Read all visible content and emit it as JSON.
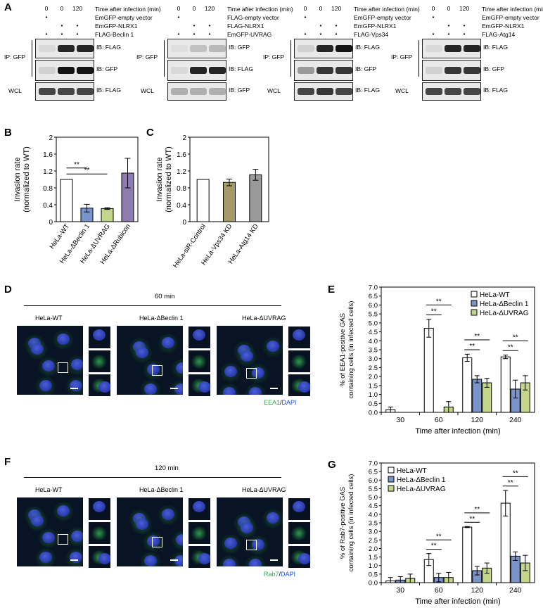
{
  "panelA": {
    "label": "A",
    "blots": [
      {
        "time_label": "Time after infection (min)",
        "times": [
          "0",
          "0",
          "120"
        ],
        "rows": [
          {
            "label": "EmGFP-empty vector",
            "marks": [
              "•",
              "",
              ""
            ]
          },
          {
            "label": "EmGFP-NLRX1",
            "marks": [
              "",
              "•",
              "•"
            ]
          },
          {
            "label": "FLAG-Beclin 1",
            "marks": [
              "•",
              "•",
              "•"
            ]
          }
        ],
        "ip": "IP: GFP",
        "wcl": "WCL",
        "ib": [
          "IB: FLAG",
          "IB: GFP",
          "IB: FLAG"
        ]
      },
      {
        "time_label": "Time after infection (min)",
        "times": [
          "0",
          "0",
          "120"
        ],
        "rows": [
          {
            "label": "FLAG-empty vector",
            "marks": [
              "•",
              "",
              ""
            ]
          },
          {
            "label": "FLAG-NLRX1",
            "marks": [
              "",
              "•",
              "•"
            ]
          },
          {
            "label": "EmGFP-UVRAG",
            "marks": [
              "•",
              "•",
              "•"
            ]
          }
        ],
        "ip": "IP: GFP",
        "wcl": "WCL",
        "ib": [
          "IB: GFP",
          "IB: FLAG",
          "IB: GFP"
        ]
      },
      {
        "time_label": "Time after infection (min)",
        "times": [
          "0",
          "0",
          "120"
        ],
        "rows": [
          {
            "label": "EmGFP-empty vector",
            "marks": [
              "•",
              "",
              ""
            ]
          },
          {
            "label": "EmGFP-NLRX1",
            "marks": [
              "",
              "•",
              "•"
            ]
          },
          {
            "label": "FLAG-Vps34",
            "marks": [
              "•",
              "•",
              "•"
            ]
          }
        ],
        "ip": "IP: GFP",
        "wcl": "WCL",
        "ib": [
          "IB: FLAG",
          "IB: GFP",
          "IB: FLAG"
        ]
      },
      {
        "time_label": "Time after infection (min)",
        "times": [
          "0",
          "0",
          "120"
        ],
        "rows": [
          {
            "label": "EmGFP-empty vector",
            "marks": [
              "•",
              "",
              ""
            ]
          },
          {
            "label": "EmGFP-NLRX1",
            "marks": [
              "",
              "•",
              "•"
            ]
          },
          {
            "label": "FLAG-Atg14",
            "marks": [
              "•",
              "•",
              "•"
            ]
          }
        ],
        "ip": "IP: GFP",
        "wcl": "WCL",
        "ib": [
          "IB: FLAG",
          "IB: GFP",
          "IB: FLAG"
        ]
      }
    ]
  },
  "panelD": {
    "label": "D",
    "time": "60 min",
    "samples": [
      "HeLa-WT",
      "HeLa-ΔBeclin 1",
      "HeLa-ΔUVRAG"
    ],
    "channel_a": "EEA1",
    "channel_sep": "/",
    "channel_b": "DAPI"
  },
  "panelF": {
    "label": "F",
    "time": "120 min",
    "samples": [
      "HeLa-WT",
      "HeLa-ΔBeclin 1",
      "HeLa-ΔUVRAG"
    ],
    "channel_a": "Rab7",
    "channel_sep": "/",
    "channel_b": "DAPI"
  },
  "colors": {
    "wt": "#ffffff",
    "beclin": "#7a93c8",
    "uvrag": "#c3d68c",
    "rubicon": "#8f7bb0",
    "vps34": "#a59b6a",
    "atg14": "#9a9a9a",
    "gfp_green": "#2ea84a",
    "dapi_blue": "#1f4fc8"
  },
  "chart_data": [
    {
      "panel": "B",
      "type": "bar",
      "categories": [
        "HeLa-WT",
        "HeLa-ΔBeclin 1",
        "HeLa-ΔUVRAG",
        "HeLa-ΔRubicon"
      ],
      "values": [
        1.0,
        0.32,
        0.31,
        1.15
      ],
      "errors": [
        0,
        0.09,
        0.02,
        0.35
      ],
      "ylabel_lines": [
        "Invasion rate",
        "(normalized to WT)"
      ],
      "ylim": [
        0,
        2
      ],
      "yticks": [
        0,
        0.4,
        0.8,
        1.2,
        1.6,
        2
      ],
      "significance": [
        {
          "from": 0,
          "to": 1,
          "label": "**"
        },
        {
          "from": 0,
          "to": 2,
          "label": "**"
        }
      ]
    },
    {
      "panel": "C",
      "type": "bar",
      "categories": [
        "HeLa-siR-Control",
        "HeLa-Vps34 KD",
        "HeLa-Atg14 KD"
      ],
      "values": [
        1.0,
        0.93,
        1.11
      ],
      "errors": [
        0,
        0.08,
        0.13
      ],
      "ylabel_lines": [
        "Invasion rate",
        "(normalized to WT)"
      ],
      "ylim": [
        0,
        2
      ],
      "yticks": [
        0,
        0.4,
        0.8,
        1.2,
        1.6,
        2
      ],
      "significance": []
    },
    {
      "panel": "E",
      "type": "bar",
      "categories": [
        "30",
        "60",
        "120",
        "240"
      ],
      "series": [
        {
          "name": "HeLa-WT",
          "values": [
            0.15,
            4.7,
            3.05,
            3.1
          ],
          "errors": [
            0.15,
            0.5,
            0.2,
            0.1
          ]
        },
        {
          "name": "HeLa-ΔBeclin 1",
          "values": [
            0,
            0,
            1.85,
            1.3
          ],
          "errors": [
            0,
            0,
            0.2,
            0.5
          ]
        },
        {
          "name": "HeLa-ΔUVRAG",
          "values": [
            0,
            0.3,
            1.65,
            1.65
          ],
          "errors": [
            0,
            0.3,
            0.25,
            0.4
          ]
        }
      ],
      "xlabel": "Time after infection (min)",
      "ylabel_lines": [
        "% of EEA1-positive GAS",
        "containing cells (in infected cells)"
      ],
      "ylim": [
        0,
        7
      ],
      "yticks": [
        0,
        0.5,
        1,
        1.5,
        2,
        2.5,
        3,
        3.5,
        4,
        4.5,
        5,
        5.5,
        6,
        6.5,
        7
      ],
      "significance": [
        {
          "category": 1,
          "from": 0,
          "to": 1,
          "label": "**"
        },
        {
          "category": 1,
          "from": 0,
          "to": 2,
          "label": "**"
        },
        {
          "category": 2,
          "from": 0,
          "to": 1,
          "label": "**"
        },
        {
          "category": 2,
          "from": 0,
          "to": 2,
          "label": "**"
        },
        {
          "category": 3,
          "from": 0,
          "to": 1,
          "label": "**"
        },
        {
          "category": 3,
          "from": 0,
          "to": 2,
          "label": "**"
        }
      ],
      "legend": "top-right"
    },
    {
      "panel": "G",
      "type": "bar",
      "categories": [
        "30",
        "60",
        "120",
        "240"
      ],
      "series": [
        {
          "name": "HeLa-WT",
          "values": [
            0.1,
            1.35,
            3.25,
            4.65
          ],
          "errors": [
            0.2,
            0.35,
            0.03,
            0.75
          ]
        },
        {
          "name": "HeLa-ΔBeclin 1",
          "values": [
            0.15,
            0.3,
            0.7,
            1.55
          ],
          "errors": [
            0.2,
            0.25,
            0.25,
            0.25
          ]
        },
        {
          "name": "HeLa-ΔUVRAG",
          "values": [
            0.25,
            0.3,
            0.85,
            1.15
          ],
          "errors": [
            0.25,
            0.3,
            0.3,
            0.45
          ]
        }
      ],
      "xlabel": "Time after infection (min)",
      "ylabel_lines": [
        "% of Rab7-positive GAS",
        "containing cells (in infected cells)"
      ],
      "ylim": [
        0,
        7
      ],
      "yticks": [
        0,
        0.5,
        1,
        1.5,
        2,
        2.5,
        3,
        3.5,
        4,
        4.5,
        5,
        5.5,
        6,
        6.5,
        7
      ],
      "significance": [
        {
          "category": 1,
          "from": 0,
          "to": 1,
          "label": "**"
        },
        {
          "category": 1,
          "from": 0,
          "to": 2,
          "label": "**"
        },
        {
          "category": 2,
          "from": 0,
          "to": 1,
          "label": "**"
        },
        {
          "category": 2,
          "from": 0,
          "to": 2,
          "label": "**"
        },
        {
          "category": 3,
          "from": 0,
          "to": 1,
          "label": "**"
        },
        {
          "category": 3,
          "from": 0,
          "to": 2,
          "label": "**"
        }
      ],
      "legend": "top-left"
    }
  ]
}
